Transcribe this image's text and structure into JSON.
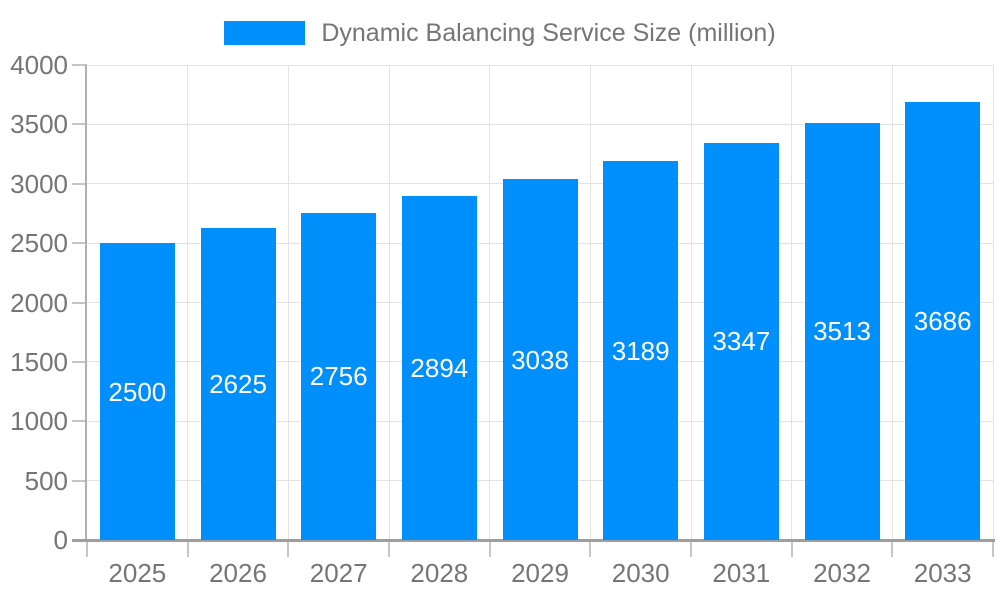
{
  "legend": {
    "label": "Dynamic Balancing Service Size (million)"
  },
  "chart_data": {
    "type": "bar",
    "title": "Dynamic Balancing Service Size (million)",
    "categories": [
      "2025",
      "2026",
      "2027",
      "2028",
      "2029",
      "2030",
      "2031",
      "2032",
      "2033"
    ],
    "values": [
      2500,
      2625,
      2756,
      2894,
      3038,
      3189,
      3347,
      3513,
      3686
    ],
    "xlabel": "",
    "ylabel": "",
    "ylim": [
      0,
      4000
    ],
    "ytick_step": 500,
    "grid": true,
    "legend_position": "top",
    "bar_labels_inside": true,
    "colors": {
      "bar": "#008ffb",
      "bar_label": "#ffffff",
      "axis_text": "#757575",
      "grid": "#e3e3e3",
      "tick": "#c6c6c6",
      "x_axis_line": "#9e9e9e",
      "y_axis_line": "#b0b0b0"
    }
  }
}
